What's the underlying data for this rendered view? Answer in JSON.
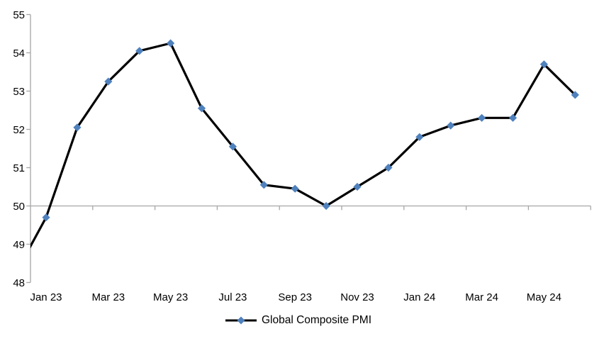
{
  "chart_data": {
    "type": "line",
    "title": "",
    "legend_position": "bottom",
    "grid": false,
    "ylim": [
      48,
      55
    ],
    "y_ticks": [
      48,
      49,
      50,
      51,
      52,
      53,
      54,
      55
    ],
    "x_axis_cross_at": 50,
    "x_tick_labels": [
      "Jan 23",
      "Mar 23",
      "May 23",
      "Jul 23",
      "Sep 23",
      "Nov 23",
      "Jan 24",
      "Mar 24",
      "May 24"
    ],
    "series": [
      {
        "name": "Global Composite PMI",
        "x": [
          "Dec 22",
          "Jan 23",
          "Feb 23",
          "Mar 23",
          "Apr 23",
          "May 23",
          "Jun 23",
          "Jul 23",
          "Aug 23",
          "Sep 23",
          "Oct 23",
          "Nov 23",
          "Dec 23",
          "Jan 24",
          "Feb 24",
          "Mar 24",
          "Apr 24",
          "May 24",
          "Jun 24"
        ],
        "values": [
          48.2,
          49.7,
          52.05,
          53.25,
          54.05,
          54.25,
          52.55,
          51.55,
          50.55,
          50.45,
          50.0,
          50.5,
          51.0,
          51.8,
          52.1,
          52.3,
          52.3,
          53.7,
          52.9
        ]
      }
    ],
    "notes": "First point (Dec 22) lies left of the plot area and is clipped by the y-axis; only the entering line segment is visible, no marker. Markers are diamonds.",
    "colors": {
      "line": "#000000",
      "marker": "#4F81BD",
      "axis": "#A6A6A6",
      "text": "#000000"
    }
  }
}
